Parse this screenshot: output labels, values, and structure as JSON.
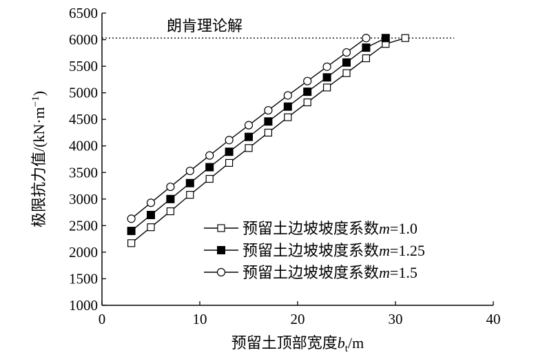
{
  "chart_data": {
    "type": "line",
    "xlabel_prefix": "预留土顶部宽度",
    "xlabel_var": "b",
    "xlabel_sub": "t",
    "xlabel_unit": "/m",
    "ylabel_prefix": "极限抗力值/(kN",
    "ylabel_dot": "·",
    "ylabel_m": "m",
    "ylabel_exp": "−1",
    "ylabel_close": ")",
    "xlim": [
      0,
      40
    ],
    "ylim": [
      1000,
      6500
    ],
    "xticks": [
      0,
      10,
      20,
      30,
      40
    ],
    "yticks": [
      1000,
      1500,
      2000,
      2500,
      3000,
      3500,
      4000,
      4500,
      5000,
      5500,
      6000,
      6500
    ],
    "x": [
      3,
      5,
      7,
      9,
      11,
      13,
      15,
      17,
      19,
      21,
      23,
      25,
      27,
      29,
      31
    ],
    "series": [
      {
        "name": "预留土边坡坡度系数",
        "m_label": "m",
        "m_value": "=1.0",
        "marker": "open-square",
        "x": [
          3,
          5,
          7,
          9,
          11,
          13,
          15,
          17,
          19,
          21,
          23,
          25,
          27,
          29,
          31
        ],
        "values": [
          2170,
          2470,
          2770,
          3080,
          3380,
          3680,
          3960,
          4250,
          4540,
          4820,
          5100,
          5370,
          5650,
          5920,
          6030
        ]
      },
      {
        "name": "预留土边坡坡度系数",
        "m_label": "m",
        "m_value": "=1.25",
        "marker": "filled-square",
        "x": [
          3,
          5,
          7,
          9,
          11,
          13,
          15,
          17,
          19,
          21,
          23,
          25,
          27,
          29
        ],
        "values": [
          2400,
          2700,
          3000,
          3300,
          3600,
          3890,
          4170,
          4460,
          4740,
          5020,
          5290,
          5570,
          5850,
          6030
        ]
      },
      {
        "name": "预留土边坡坡度系数",
        "m_label": "m",
        "m_value": "=1.5",
        "marker": "open-circle",
        "x": [
          3,
          5,
          7,
          9,
          11,
          13,
          15,
          17,
          19,
          21,
          23,
          25,
          27
        ],
        "values": [
          2630,
          2930,
          3230,
          3530,
          3820,
          4110,
          4390,
          4670,
          4950,
          5220,
          5490,
          5760,
          6030
        ]
      }
    ],
    "reference_line": {
      "label": "朗肯理论解",
      "value": 6030,
      "style": "dotted"
    },
    "legend_position": "lower-right",
    "grid": false
  }
}
